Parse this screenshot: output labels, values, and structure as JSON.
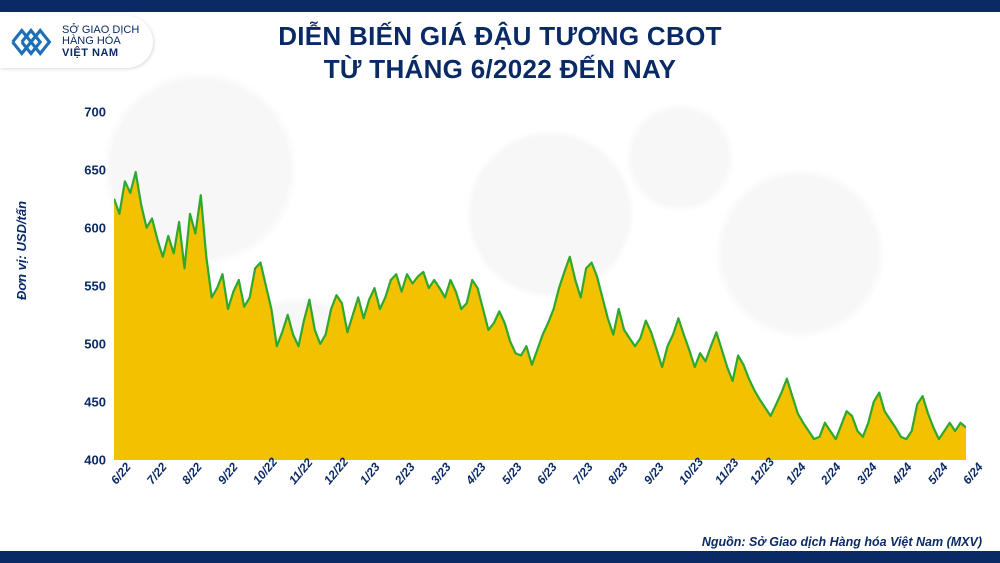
{
  "logo": {
    "line1": "SỞ GIAO DỊCH",
    "line2": "HÀNG HÓA",
    "line3": "VIỆT NAM",
    "mark_color": "#1d6fb8"
  },
  "title": {
    "line1": "DIỄN BIẾN GIÁ ĐẬU TƯƠNG CBOT",
    "line2": "TỪ THÁNG 6/2022 ĐẾN NAY",
    "color": "#0a2a66",
    "fontsize": 26
  },
  "y_axis": {
    "label": "Đơn vị: USD/tấn",
    "min": 400,
    "max": 710,
    "ticks": [
      400,
      450,
      500,
      550,
      600,
      650,
      700
    ],
    "tick_fontsize": 13,
    "tick_color": "#0a2a66"
  },
  "x_axis": {
    "labels": [
      "6/22",
      "7/22",
      "8/22",
      "9/22",
      "10/22",
      "11/22",
      "12/22",
      "1/23",
      "2/23",
      "3/23",
      "4/23",
      "5/23",
      "6/23",
      "7/23",
      "8/23",
      "9/23",
      "10/23",
      "11/23",
      "12/23",
      "1/24",
      "2/24",
      "3/24",
      "4/24",
      "5/24",
      "6/24"
    ],
    "tick_fontsize": 12,
    "tick_color": "#0a2a66",
    "rotation_deg": -50
  },
  "chart": {
    "type": "area",
    "line_color": "#2ea82e",
    "line_width": 2.2,
    "fill_color": "#f2c100",
    "fill_opacity": 1.0,
    "background_color": "#ffffff",
    "values": [
      625,
      612,
      640,
      630,
      648,
      620,
      600,
      608,
      590,
      575,
      593,
      578,
      605,
      565,
      612,
      595,
      628,
      575,
      540,
      548,
      560,
      530,
      545,
      555,
      532,
      540,
      565,
      570,
      550,
      530,
      498,
      510,
      525,
      508,
      498,
      520,
      538,
      512,
      500,
      508,
      530,
      542,
      535,
      510,
      525,
      540,
      522,
      538,
      548,
      530,
      540,
      555,
      560,
      545,
      560,
      552,
      558,
      562,
      548,
      555,
      548,
      540,
      555,
      545,
      530,
      535,
      555,
      548,
      530,
      512,
      518,
      528,
      518,
      502,
      492,
      490,
      498,
      482,
      495,
      508,
      518,
      530,
      548,
      562,
      575,
      555,
      540,
      565,
      570,
      558,
      540,
      522,
      508,
      530,
      512,
      505,
      498,
      505,
      520,
      510,
      495,
      480,
      498,
      508,
      522,
      508,
      495,
      480,
      492,
      485,
      498,
      510,
      495,
      480,
      468,
      490,
      482,
      470,
      460,
      452,
      445,
      438,
      448,
      458,
      470,
      455,
      440,
      432,
      425,
      418,
      420,
      432,
      425,
      418,
      430,
      442,
      438,
      425,
      420,
      432,
      450,
      458,
      442,
      435,
      428,
      420,
      418,
      425,
      448,
      455,
      440,
      428,
      418,
      425,
      432,
      425,
      432,
      428
    ]
  },
  "footer": {
    "text": "Nguồn: Sở Giao dịch Hàng hóa Việt Nam (MXV)",
    "color": "#0a2a66",
    "fontsize": 12.5
  },
  "frame_bar_color": "#0a2a66"
}
